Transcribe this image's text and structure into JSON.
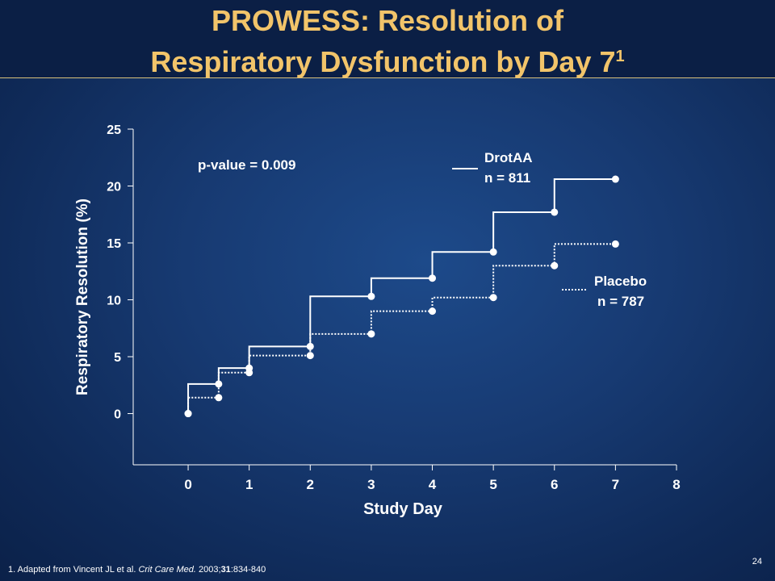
{
  "slide": {
    "title_line1": "PROWESS: Resolution of",
    "title_line2": "Respiratory Dysfunction by Day 7",
    "title_superscript": "1",
    "footnote_prefix": "1. Adapted from Vincent JL et al. ",
    "footnote_journal": "Crit Care Med.",
    "footnote_year": " 2003;",
    "footnote_volume": "31",
    "footnote_pages": ":834-840",
    "page_number": "24",
    "colors": {
      "title": "#f2c46a",
      "background": "#173a72",
      "text": "#ffffff"
    }
  },
  "chart_data": {
    "type": "line",
    "step": true,
    "xlabel": "Study Day",
    "ylabel": "Respiratory Resolution (%)",
    "xlim": [
      -0.9,
      8
    ],
    "ylim": [
      -4.5,
      25
    ],
    "x_ticks": [
      0,
      1,
      2,
      3,
      4,
      5,
      6,
      7,
      8
    ],
    "y_ticks": [
      0,
      5,
      10,
      15,
      20,
      25
    ],
    "annotation": "p-value = 0.009",
    "series": [
      {
        "name": "DrotAA",
        "n_label": "n = 811",
        "line_style": "solid",
        "points": [
          [
            0,
            0
          ],
          [
            0.5,
            2.6
          ],
          [
            1,
            4.0
          ],
          [
            2,
            5.9
          ],
          [
            3,
            10.3
          ],
          [
            4,
            11.9
          ],
          [
            5,
            14.2
          ],
          [
            6,
            17.7
          ],
          [
            7,
            20.6
          ]
        ]
      },
      {
        "name": "Placebo",
        "n_label": "n = 787",
        "line_style": "dotted",
        "points": [
          [
            0,
            0
          ],
          [
            0.5,
            1.4
          ],
          [
            1,
            3.6
          ],
          [
            2,
            5.1
          ],
          [
            3,
            7.0
          ],
          [
            4,
            9.0
          ],
          [
            5,
            10.2
          ],
          [
            6,
            13.0
          ],
          [
            7,
            14.9
          ]
        ]
      }
    ]
  }
}
